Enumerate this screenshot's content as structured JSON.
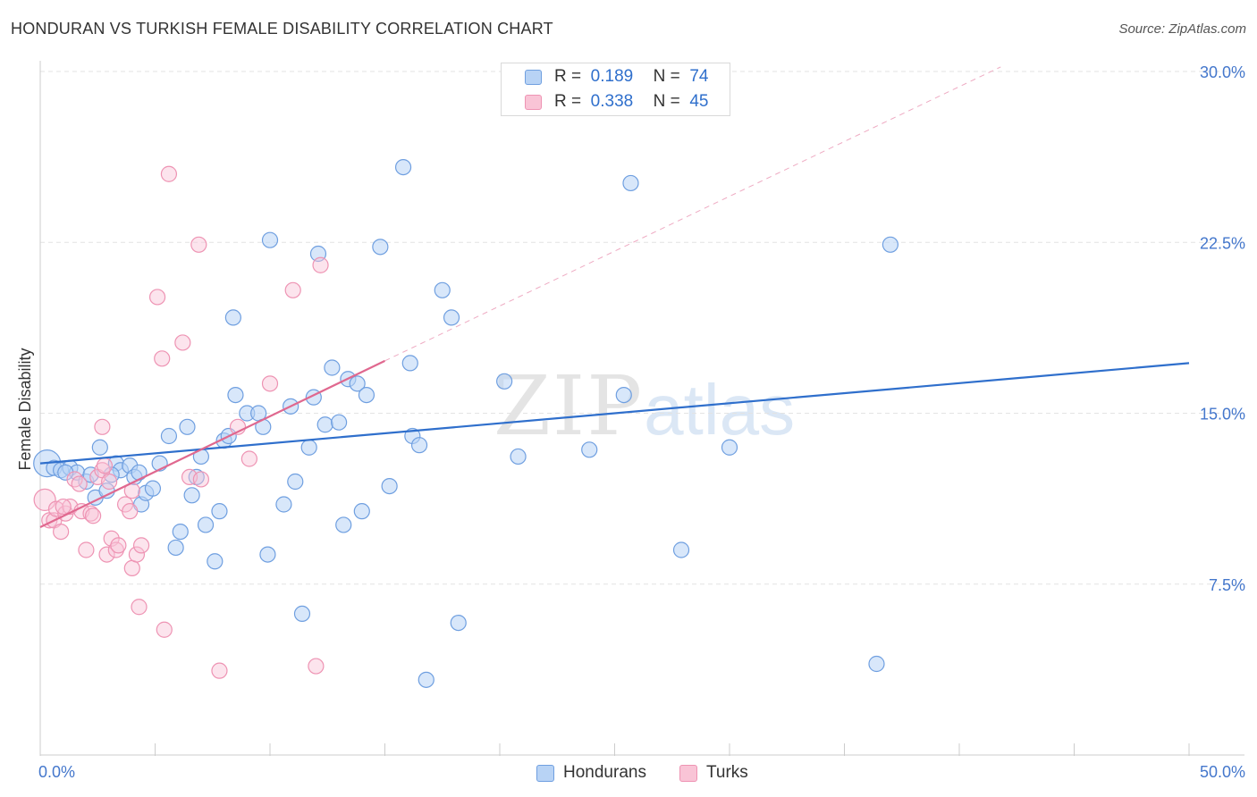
{
  "header": {
    "title": "HONDURAN VS TURKISH FEMALE DISABILITY CORRELATION CHART",
    "source": "Source: ZipAtlas.com"
  },
  "watermark": {
    "part1": "ZIP",
    "part2": "atlas"
  },
  "legend": {
    "rows": [
      {
        "r_label": "R =",
        "r_value": "0.189",
        "n_label": "N =",
        "n_value": "74"
      },
      {
        "r_label": "R =",
        "r_value": "0.338",
        "n_label": "N =",
        "n_value": "45"
      }
    ]
  },
  "bottom_legend": {
    "hondurans": "Hondurans",
    "turks": "Turks"
  },
  "chart_data": {
    "type": "scatter",
    "title": "HONDURAN VS TURKISH FEMALE DISABILITY CORRELATION CHART",
    "xlabel": "",
    "ylabel": "Female Disability",
    "xlim": [
      0,
      50
    ],
    "ylim": [
      0,
      30
    ],
    "x_tick_labels": [
      "0.0%",
      "50.0%"
    ],
    "y_ticks": [
      7.5,
      15.0,
      22.5,
      30.0
    ],
    "y_tick_labels": [
      "7.5%",
      "15.0%",
      "22.5%",
      "30.0%"
    ],
    "grid": "horizontal dashed",
    "legend_placement": "top-center",
    "colors": {
      "hondurans": "#6f9fe0",
      "hondurans_line": "#2f6fcc",
      "turks": "#ee93b3",
      "turks_line": "#e0688f",
      "axis_label": "#4477cc"
    },
    "series": [
      {
        "name": "Hondurans",
        "r": 0.189,
        "n": 74,
        "trend": {
          "x": [
            0,
            50
          ],
          "y": [
            12.8,
            17.2
          ]
        },
        "points": [
          {
            "x": 0.3,
            "y": 12.8,
            "big": true
          },
          {
            "x": 0.6,
            "y": 12.6
          },
          {
            "x": 0.9,
            "y": 12.5
          },
          {
            "x": 1.3,
            "y": 12.6
          },
          {
            "x": 1.6,
            "y": 12.4
          },
          {
            "x": 2.0,
            "y": 12.0
          },
          {
            "x": 2.2,
            "y": 12.3
          },
          {
            "x": 2.4,
            "y": 11.3
          },
          {
            "x": 2.6,
            "y": 13.5
          },
          {
            "x": 2.9,
            "y": 11.6
          },
          {
            "x": 3.3,
            "y": 12.8
          },
          {
            "x": 3.5,
            "y": 12.5
          },
          {
            "x": 3.9,
            "y": 12.7
          },
          {
            "x": 4.1,
            "y": 12.2
          },
          {
            "x": 4.4,
            "y": 11.0
          },
          {
            "x": 4.6,
            "y": 11.5
          },
          {
            "x": 4.9,
            "y": 11.7
          },
          {
            "x": 5.2,
            "y": 12.8
          },
          {
            "x": 5.6,
            "y": 14.0
          },
          {
            "x": 5.9,
            "y": 9.1
          },
          {
            "x": 6.1,
            "y": 9.8
          },
          {
            "x": 6.4,
            "y": 14.4
          },
          {
            "x": 6.6,
            "y": 11.4
          },
          {
            "x": 6.8,
            "y": 12.2
          },
          {
            "x": 7.0,
            "y": 13.1
          },
          {
            "x": 7.2,
            "y": 10.1
          },
          {
            "x": 7.6,
            "y": 8.5
          },
          {
            "x": 7.8,
            "y": 10.7
          },
          {
            "x": 8.0,
            "y": 13.8
          },
          {
            "x": 8.4,
            "y": 19.2
          },
          {
            "x": 8.5,
            "y": 15.8
          },
          {
            "x": 9.0,
            "y": 15.0
          },
          {
            "x": 9.5,
            "y": 15.0
          },
          {
            "x": 9.7,
            "y": 14.4
          },
          {
            "x": 9.9,
            "y": 8.8
          },
          {
            "x": 10.0,
            "y": 22.6
          },
          {
            "x": 10.6,
            "y": 11.0
          },
          {
            "x": 10.9,
            "y": 15.3
          },
          {
            "x": 11.1,
            "y": 12.0
          },
          {
            "x": 11.4,
            "y": 6.2
          },
          {
            "x": 11.7,
            "y": 13.5
          },
          {
            "x": 11.9,
            "y": 15.7
          },
          {
            "x": 12.1,
            "y": 22.0
          },
          {
            "x": 12.4,
            "y": 14.5
          },
          {
            "x": 12.7,
            "y": 17.0
          },
          {
            "x": 13.0,
            "y": 14.6
          },
          {
            "x": 13.2,
            "y": 10.1
          },
          {
            "x": 13.4,
            "y": 16.5
          },
          {
            "x": 13.8,
            "y": 16.3
          },
          {
            "x": 14.0,
            "y": 10.7
          },
          {
            "x": 14.2,
            "y": 15.8
          },
          {
            "x": 14.8,
            "y": 22.3
          },
          {
            "x": 15.2,
            "y": 11.8
          },
          {
            "x": 15.8,
            "y": 25.8
          },
          {
            "x": 16.1,
            "y": 17.2
          },
          {
            "x": 16.2,
            "y": 14.0
          },
          {
            "x": 16.5,
            "y": 13.6
          },
          {
            "x": 16.8,
            "y": 3.3
          },
          {
            "x": 17.5,
            "y": 20.4
          },
          {
            "x": 17.9,
            "y": 19.2
          },
          {
            "x": 18.2,
            "y": 5.8
          },
          {
            "x": 20.2,
            "y": 16.4
          },
          {
            "x": 20.8,
            "y": 13.1
          },
          {
            "x": 23.9,
            "y": 13.4
          },
          {
            "x": 25.4,
            "y": 15.8
          },
          {
            "x": 25.7,
            "y": 25.1
          },
          {
            "x": 27.9,
            "y": 9.0
          },
          {
            "x": 30.0,
            "y": 13.5
          },
          {
            "x": 36.4,
            "y": 4.0
          },
          {
            "x": 37.0,
            "y": 22.4
          },
          {
            "x": 3.1,
            "y": 12.3
          },
          {
            "x": 1.1,
            "y": 12.4
          },
          {
            "x": 4.3,
            "y": 12.4
          },
          {
            "x": 8.2,
            "y": 14.0
          }
        ]
      },
      {
        "name": "Turks",
        "r": 0.338,
        "n": 45,
        "trend": {
          "x": [
            0,
            15
          ],
          "y": [
            10.0,
            17.3
          ]
        },
        "trend_extension": {
          "x": [
            15,
            41.8
          ],
          "y": [
            17.3,
            30.2
          ]
        },
        "points": [
          {
            "x": 0.2,
            "y": 11.2,
            "big": true
          },
          {
            "x": 0.4,
            "y": 10.3
          },
          {
            "x": 0.6,
            "y": 10.3
          },
          {
            "x": 0.7,
            "y": 10.8
          },
          {
            "x": 0.9,
            "y": 9.8
          },
          {
            "x": 1.1,
            "y": 10.6
          },
          {
            "x": 1.3,
            "y": 10.9
          },
          {
            "x": 1.5,
            "y": 12.1
          },
          {
            "x": 1.7,
            "y": 11.9
          },
          {
            "x": 1.8,
            "y": 10.7
          },
          {
            "x": 2.0,
            "y": 9.0
          },
          {
            "x": 2.2,
            "y": 10.6
          },
          {
            "x": 2.5,
            "y": 12.2
          },
          {
            "x": 2.7,
            "y": 12.5
          },
          {
            "x": 2.7,
            "y": 14.4
          },
          {
            "x": 2.8,
            "y": 12.7
          },
          {
            "x": 2.9,
            "y": 8.8
          },
          {
            "x": 3.1,
            "y": 9.5
          },
          {
            "x": 3.3,
            "y": 9.0
          },
          {
            "x": 3.4,
            "y": 9.2
          },
          {
            "x": 3.7,
            "y": 11.0
          },
          {
            "x": 3.9,
            "y": 10.7
          },
          {
            "x": 4.0,
            "y": 8.2
          },
          {
            "x": 4.2,
            "y": 8.8
          },
          {
            "x": 4.3,
            "y": 6.5
          },
          {
            "x": 4.4,
            "y": 9.2
          },
          {
            "x": 5.1,
            "y": 20.1
          },
          {
            "x": 5.3,
            "y": 17.4
          },
          {
            "x": 5.4,
            "y": 5.5
          },
          {
            "x": 5.6,
            "y": 25.5
          },
          {
            "x": 6.2,
            "y": 18.1
          },
          {
            "x": 6.5,
            "y": 12.2
          },
          {
            "x": 6.9,
            "y": 22.4
          },
          {
            "x": 7.0,
            "y": 12.1
          },
          {
            "x": 7.8,
            "y": 3.7
          },
          {
            "x": 8.6,
            "y": 14.4
          },
          {
            "x": 9.1,
            "y": 13.0
          },
          {
            "x": 10.0,
            "y": 16.3
          },
          {
            "x": 11.0,
            "y": 20.4
          },
          {
            "x": 12.0,
            "y": 3.9
          },
          {
            "x": 12.2,
            "y": 21.5
          },
          {
            "x": 4.0,
            "y": 11.6
          },
          {
            "x": 3.0,
            "y": 12.0
          },
          {
            "x": 1.0,
            "y": 10.9
          },
          {
            "x": 2.3,
            "y": 10.5
          }
        ]
      }
    ]
  }
}
